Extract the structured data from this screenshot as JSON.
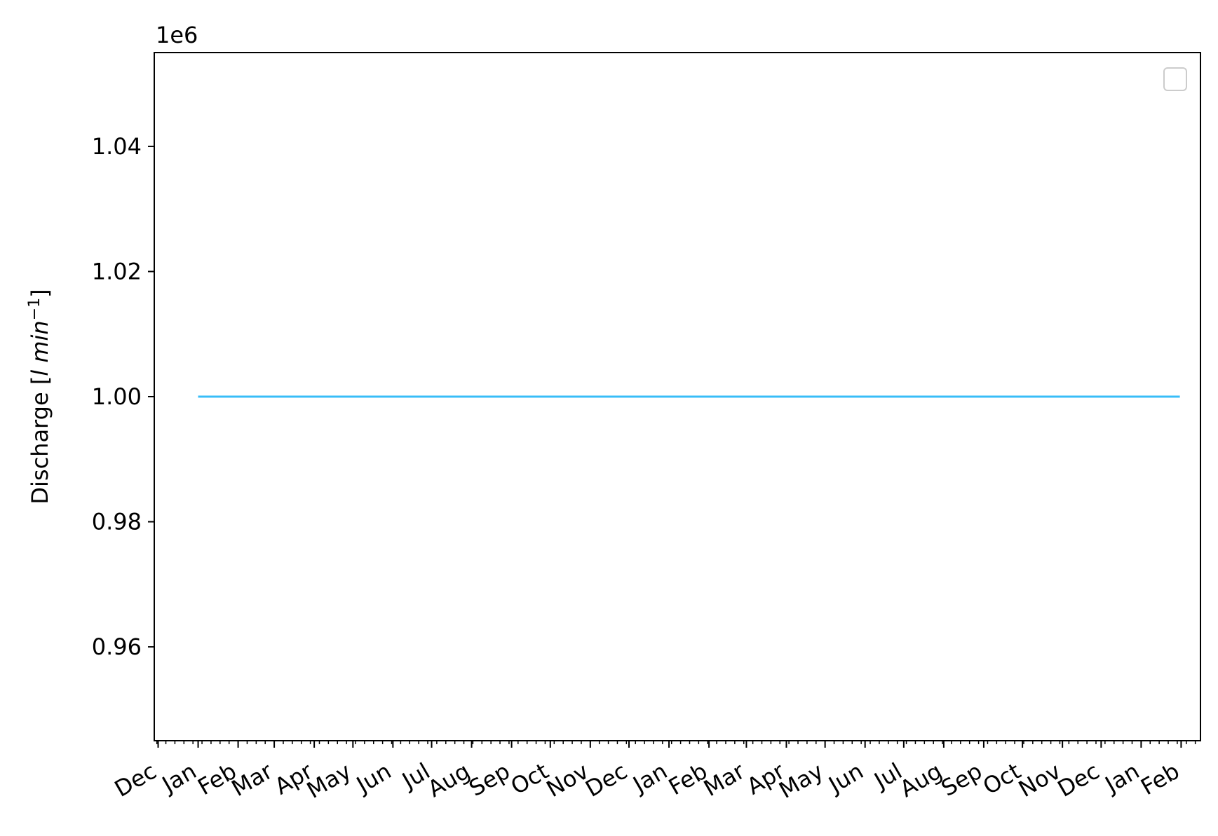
{
  "chart_data": {
    "type": "line",
    "title": "",
    "xlabel": "",
    "ylabel": "Discharge [",
    "ylabel_unit": "l min",
    "ylabel_exp": "−1",
    "ylabel_close": "]",
    "offset_text": "1e6",
    "ylim": [
      0.945,
      1.055
    ],
    "yticks": [
      0.96,
      0.98,
      1.0,
      1.02,
      1.04
    ],
    "ytick_labels": [
      "0.96",
      "0.98",
      "1.00",
      "1.02",
      "1.04"
    ],
    "xlim": [
      "2022-11-28",
      "2025-02-16"
    ],
    "xtick_dates": [
      "2022-12-01",
      "2023-01-01",
      "2023-02-01",
      "2023-03-01",
      "2023-04-01",
      "2023-05-01",
      "2023-06-01",
      "2023-07-01",
      "2023-08-01",
      "2023-09-01",
      "2023-10-01",
      "2023-11-01",
      "2023-12-01",
      "2024-01-01",
      "2024-02-01",
      "2024-03-01",
      "2024-04-01",
      "2024-05-01",
      "2024-06-01",
      "2024-07-01",
      "2024-08-01",
      "2024-09-01",
      "2024-10-01",
      "2024-11-01",
      "2024-12-01",
      "2025-01-01",
      "2025-02-01"
    ],
    "xtick_labels": [
      "Dec",
      "Jan",
      "Feb",
      "Mar",
      "Apr",
      "May",
      "Jun",
      "Jul",
      "Aug",
      "Sep",
      "Oct",
      "Nov",
      "Dec",
      "Jan",
      "Feb",
      "Mar",
      "Apr",
      "May",
      "Jun",
      "Jul",
      "Aug",
      "Sep",
      "Oct",
      "Nov",
      "Dec",
      "Jan",
      "Feb"
    ],
    "series": [
      {
        "color": "#38bdf8",
        "x": [
          "2023-01-01",
          "2025-01-31"
        ],
        "y": [
          1.0,
          1.0
        ]
      }
    ],
    "legend": {
      "placement": "upper right",
      "entries": []
    },
    "grid": false
  }
}
